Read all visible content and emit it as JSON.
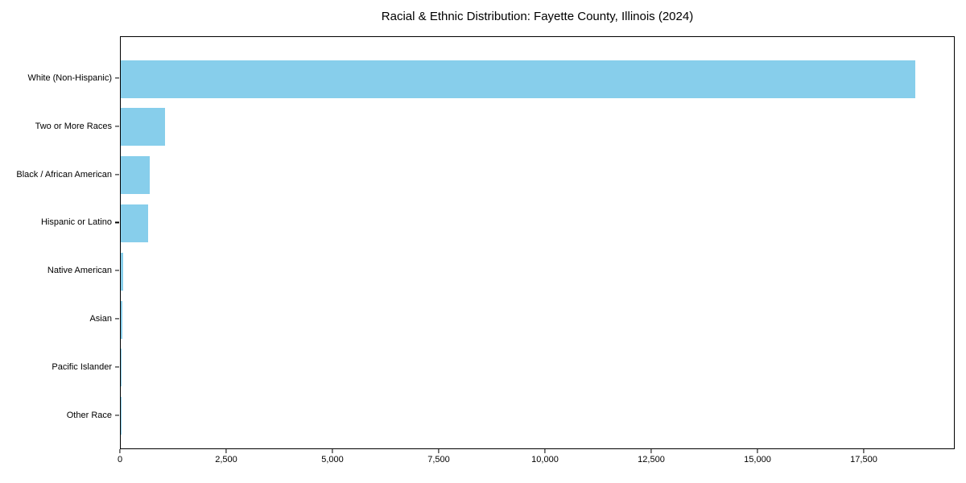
{
  "chart_data": {
    "type": "bar",
    "orientation": "horizontal",
    "title": "Racial & Ethnic Distribution: Fayette County, Illinois (2024)",
    "categories": [
      "White (Non-Hispanic)",
      "Two or More Races",
      "Black / African American",
      "Hispanic or Latino",
      "Native American",
      "Asian",
      "Pacific Islander",
      "Other Race"
    ],
    "values": [
      18700,
      1040,
      690,
      650,
      65,
      30,
      6,
      10
    ],
    "xlabel": "",
    "ylabel": "",
    "xlim": [
      0,
      19640
    ],
    "xticks": {
      "values": [
        0,
        2500,
        5000,
        7500,
        10000,
        12500,
        15000,
        17500
      ],
      "labels": [
        "0",
        "2,500",
        "5,000",
        "7,500",
        "10,000",
        "12,500",
        "15,000",
        "17,500"
      ]
    },
    "bar_color": "#87CEEB",
    "grid": false,
    "legend_position": "none",
    "plot_background": "#ffffff"
  }
}
